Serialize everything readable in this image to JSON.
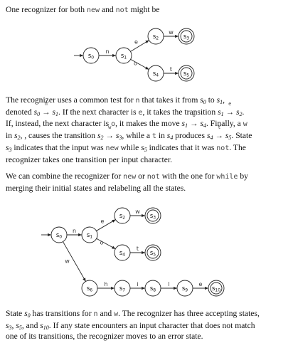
{
  "intro": {
    "text": "One recognizer for both",
    "kw1": "new",
    "and": "and",
    "kw2": "not",
    "tail": "might be"
  },
  "fig1": {
    "nodes": [
      {
        "id": "s0",
        "label": "s",
        "sub": "0",
        "accept": false
      },
      {
        "id": "s1",
        "label": "s",
        "sub": "1",
        "accept": false
      },
      {
        "id": "s2",
        "label": "s",
        "sub": "2",
        "accept": false
      },
      {
        "id": "s3",
        "label": "s",
        "sub": "3",
        "accept": true
      },
      {
        "id": "s4",
        "label": "s",
        "sub": "4",
        "accept": false
      },
      {
        "id": "s5",
        "label": "s",
        "sub": "5",
        "accept": true
      }
    ],
    "edges": [
      {
        "from": "s0",
        "to": "s1",
        "label": "n"
      },
      {
        "from": "s1",
        "to": "s2",
        "label": "e"
      },
      {
        "from": "s2",
        "to": "s3",
        "label": "w"
      },
      {
        "from": "s1",
        "to": "s4",
        "label": "o"
      },
      {
        "from": "s4",
        "to": "s5",
        "label": "t"
      }
    ]
  },
  "para1": {
    "t1": "The recognizer uses a common test for",
    "c_n": "n",
    "t2": "that takes it from",
    "t3": "to",
    "t4": "denoted",
    "t5": ". If the next character is",
    "c_e": "e",
    "t6": ", it takes the transition",
    "t7": "If, instead, the next character is",
    "c_o": "o",
    "t8": ", it makes the move",
    "t9": ". Finally, a",
    "c_w": "w",
    "t10": "in",
    "t11": ", causes the transition",
    "t12": ", while a",
    "c_t": "t",
    "t13": "in",
    "t14": "produces",
    "t15": ". State",
    "t16": "indicates that the input was",
    "kw_new": "new",
    "t17": "while",
    "t18": "indicates that it was",
    "kw_not": "not",
    "t19": ". The",
    "t20": "recognizer takes one transition per input character."
  },
  "para2": {
    "t1": "We can combine the recognizer for",
    "kw_new": "new",
    "or": "or",
    "kw_not": "not",
    "t2": "with the one for",
    "kw_while": "while",
    "t3": "by",
    "t4": "merging their initial states and relabeling all the states."
  },
  "fig2": {
    "nodes": [
      {
        "id": "s0",
        "label": "s",
        "sub": "0",
        "accept": false
      },
      {
        "id": "s1",
        "label": "s",
        "sub": "1",
        "accept": false
      },
      {
        "id": "s2",
        "label": "s",
        "sub": "2",
        "accept": false
      },
      {
        "id": "s3",
        "label": "s",
        "sub": "3",
        "accept": true
      },
      {
        "id": "s4",
        "label": "s",
        "sub": "4",
        "accept": false
      },
      {
        "id": "s5",
        "label": "s",
        "sub": "5",
        "accept": true
      },
      {
        "id": "s6",
        "label": "s",
        "sub": "6",
        "accept": false
      },
      {
        "id": "s7",
        "label": "s",
        "sub": "7",
        "accept": false
      },
      {
        "id": "s8",
        "label": "s",
        "sub": "8",
        "accept": false
      },
      {
        "id": "s9",
        "label": "s",
        "sub": "9",
        "accept": false
      },
      {
        "id": "s10",
        "label": "s",
        "sub": "10",
        "accept": true
      }
    ],
    "edges": [
      {
        "from": "s0",
        "to": "s1",
        "label": "n"
      },
      {
        "from": "s1",
        "to": "s2",
        "label": "e"
      },
      {
        "from": "s2",
        "to": "s3",
        "label": "w"
      },
      {
        "from": "s1",
        "to": "s4",
        "label": "o"
      },
      {
        "from": "s4",
        "to": "s5",
        "label": "t"
      },
      {
        "from": "s0",
        "to": "s6",
        "label": "w"
      },
      {
        "from": "s6",
        "to": "s7",
        "label": "h"
      },
      {
        "from": "s7",
        "to": "s8",
        "label": "i"
      },
      {
        "from": "s8",
        "to": "s9",
        "label": "l"
      },
      {
        "from": "s9",
        "to": "s10",
        "label": "e"
      }
    ]
  },
  "para3": {
    "t1": "State",
    "t2": "has transitions for",
    "c_n": "n",
    "and": "and",
    "c_w": "w",
    "t3": ". The recognizer has three accepting states,",
    "t4": ", and",
    "t5": ". If any state encounters an input character that does not match",
    "t6": "one of its transitions, the recognizer moves to an error state."
  }
}
